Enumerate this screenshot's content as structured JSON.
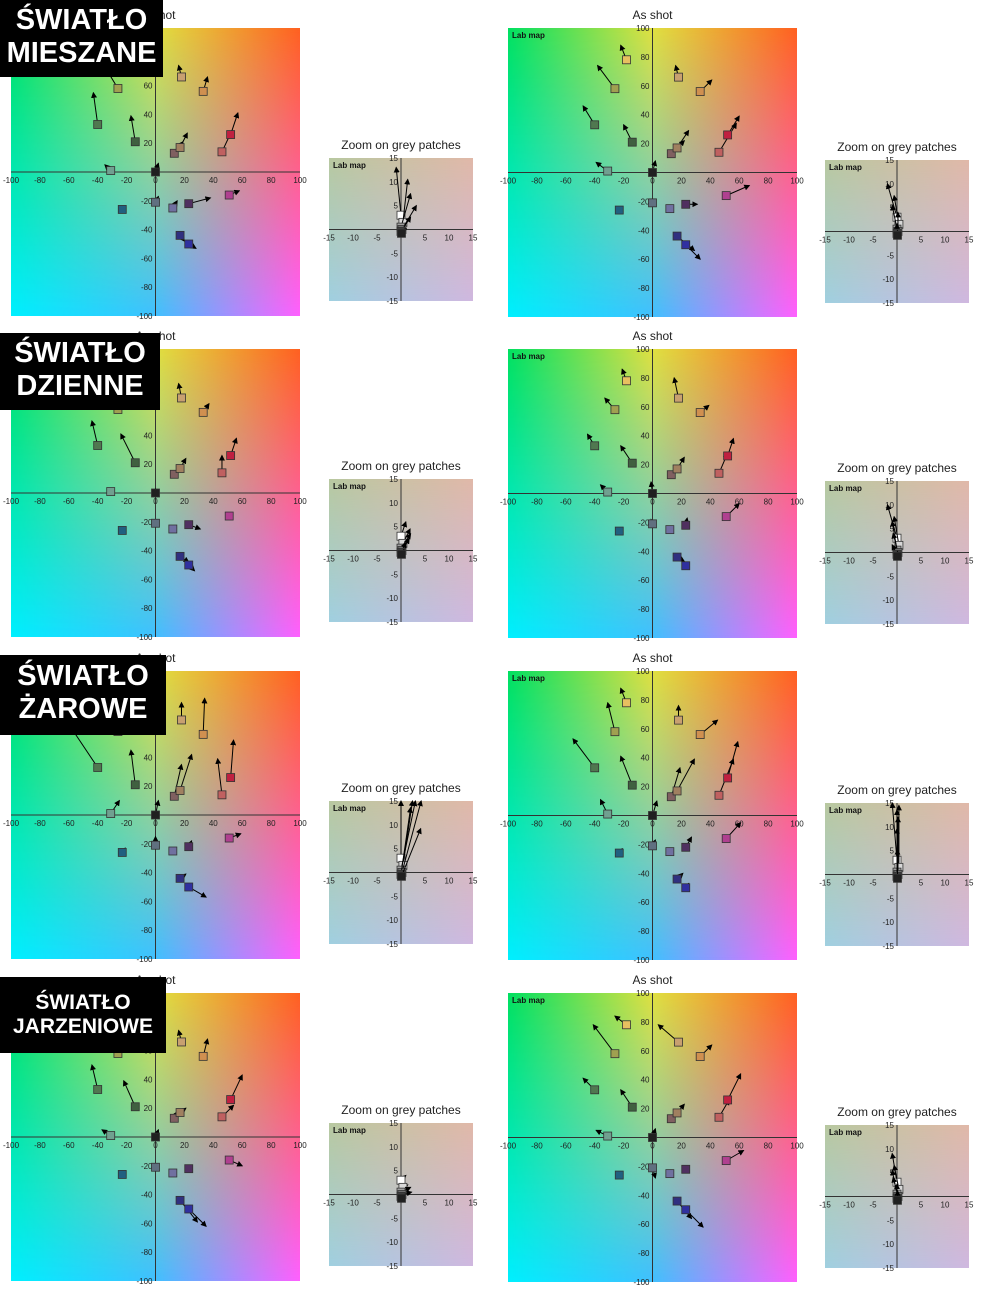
{
  "rows": [
    {
      "label_lines": [
        "ŚWIATŁO",
        "MIESZANE"
      ],
      "left_title": "As shot",
      "right_title": "As shot",
      "zoom_title_left": "Zoom on grey patches",
      "zoom_title_right": "Zoom on grey patches"
    },
    {
      "label_lines": [
        "ŚWIATŁO",
        "DZIENNE"
      ],
      "left_title": "As shot",
      "right_title": "As shot",
      "zoom_title_left": "Zoom on grey patches",
      "zoom_title_right": "Zoom on grey patches"
    },
    {
      "label_lines": [
        "ŚWIATŁO",
        "ŻAROWE"
      ],
      "left_title": "As shot",
      "right_title": "As shot",
      "zoom_title_left": "Zoom on grey patches",
      "zoom_title_right": "Zoom on grey patches"
    },
    {
      "label_lines": [
        "ŚWIATŁO",
        "JARZENIOWE"
      ],
      "left_title": "As shot",
      "right_title": "As shot",
      "zoom_title_left": "Zoom on grey patches",
      "zoom_title_right": "Zoom on grey patches"
    }
  ],
  "lab_map_label": "Lab map",
  "chart_data": {
    "type": "scatter",
    "description_axes": "a* (x) vs b* (y)",
    "main_axis": {
      "xlim": [
        -100,
        100
      ],
      "ylim": [
        -100,
        100
      ],
      "ticks": [
        -100,
        -80,
        -60,
        -40,
        -20,
        0,
        20,
        40,
        60,
        80,
        100
      ]
    },
    "zoom_axis": {
      "xlim": [
        -15,
        15
      ],
      "ylim": [
        -15,
        15
      ],
      "ticks": [
        -15,
        -10,
        -5,
        0,
        5,
        10,
        15
      ]
    },
    "patches": [
      {
        "a": -18,
        "b": 78,
        "color": "#e8c060"
      },
      {
        "a": 18,
        "b": 66,
        "color": "#c8a070"
      },
      {
        "a": 33,
        "b": 56,
        "color": "#d09050"
      },
      {
        "a": -26,
        "b": 58,
        "color": "#a0a050"
      },
      {
        "a": -40,
        "b": 33,
        "color": "#507850"
      },
      {
        "a": -14,
        "b": 21,
        "color": "#406040"
      },
      {
        "a": 13,
        "b": 13,
        "color": "#806060"
      },
      {
        "a": 17,
        "b": 17,
        "color": "#a08060"
      },
      {
        "a": 46,
        "b": 14,
        "color": "#c06060"
      },
      {
        "a": 52,
        "b": 26,
        "color": "#c02040"
      },
      {
        "a": -31,
        "b": 1,
        "color": "#70a090"
      },
      {
        "a": 0,
        "b": 0,
        "color": "#202020"
      },
      {
        "a": -23,
        "b": -26,
        "color": "#206080"
      },
      {
        "a": 0,
        "b": -21,
        "color": "#607080"
      },
      {
        "a": 12,
        "b": -25,
        "color": "#7070a0"
      },
      {
        "a": 23,
        "b": -22,
        "color": "#503060"
      },
      {
        "a": 51,
        "b": -16,
        "color": "#b04090"
      },
      {
        "a": 17,
        "b": -44,
        "color": "#303080"
      },
      {
        "a": 23,
        "b": -50,
        "color": "#3030a0"
      }
    ],
    "grey_patches": [
      {
        "a": 0,
        "b": 3,
        "color": "#ffffff"
      },
      {
        "a": 0.4,
        "b": 1.5,
        "color": "#d8d8d8"
      },
      {
        "a": 0,
        "b": 0.5,
        "color": "#a0a0a0"
      },
      {
        "a": 0.2,
        "b": 0,
        "color": "#707070"
      },
      {
        "a": 0,
        "b": -0.4,
        "color": "#404040"
      },
      {
        "a": 0.1,
        "b": -0.8,
        "color": "#202020"
      }
    ],
    "arrow_shifts": {
      "r0_left": [
        [
          2,
          10
        ],
        [
          -2,
          8
        ],
        [
          3,
          10
        ],
        [
          -12,
          20
        ],
        [
          -3,
          22
        ],
        [
          -3,
          18
        ],
        [
          6,
          8
        ],
        [
          5,
          10
        ],
        [
          7,
          15
        ],
        [
          5,
          15
        ],
        [
          -4,
          4
        ],
        [
          2,
          6
        ],
        [
          0,
          0
        ],
        [
          2,
          4
        ],
        [
          3,
          5
        ],
        [
          15,
          4
        ],
        [
          7,
          3
        ],
        [
          3,
          -4
        ],
        [
          5,
          -3
        ]
      ],
      "r0_right": [
        [
          -4,
          10
        ],
        [
          -2,
          8
        ],
        [
          8,
          8
        ],
        [
          -12,
          16
        ],
        [
          -8,
          13
        ],
        [
          -6,
          12
        ],
        [
          9,
          9
        ],
        [
          8,
          12
        ],
        [
          12,
          20
        ],
        [
          8,
          13
        ],
        [
          -8,
          6
        ],
        [
          2,
          8
        ],
        [
          0,
          0
        ],
        [
          0,
          0
        ],
        [
          0,
          0
        ],
        [
          8,
          0
        ],
        [
          16,
          7
        ],
        [
          12,
          -10
        ],
        [
          10,
          -10
        ]
      ],
      "r1_left": [
        [
          0,
          7
        ],
        [
          -2,
          10
        ],
        [
          4,
          6
        ],
        [
          -12,
          22
        ],
        [
          -4,
          17
        ],
        [
          -10,
          20
        ],
        [
          5,
          5
        ],
        [
          4,
          7
        ],
        [
          0,
          12
        ],
        [
          4,
          12
        ],
        [
          0,
          0
        ],
        [
          0,
          3
        ],
        [
          0,
          0
        ],
        [
          0,
          0
        ],
        [
          0,
          0
        ],
        [
          8,
          -3
        ],
        [
          0,
          0
        ],
        [
          6,
          -4
        ],
        [
          4,
          -4
        ]
      ],
      "r1_right": [
        [
          -3,
          8
        ],
        [
          -3,
          14
        ],
        [
          6,
          5
        ],
        [
          -7,
          8
        ],
        [
          -5,
          8
        ],
        [
          -8,
          12
        ],
        [
          5,
          5
        ],
        [
          5,
          8
        ],
        [
          6,
          14
        ],
        [
          4,
          12
        ],
        [
          -5,
          5
        ],
        [
          -1,
          8
        ],
        [
          0,
          0
        ],
        [
          -1,
          3
        ],
        [
          0,
          0
        ],
        [
          1,
          5
        ],
        [
          9,
          9
        ],
        [
          5,
          -3
        ],
        [
          0,
          0
        ]
      ],
      "r2_left": [
        [
          0,
          10
        ],
        [
          0,
          12
        ],
        [
          1,
          25
        ],
        [
          -10,
          20
        ],
        [
          -20,
          30
        ],
        [
          -3,
          24
        ],
        [
          5,
          22
        ],
        [
          8,
          25
        ],
        [
          -3,
          25
        ],
        [
          2,
          26
        ],
        [
          6,
          9
        ],
        [
          2,
          10
        ],
        [
          2,
          3
        ],
        [
          0,
          6
        ],
        [
          0,
          0
        ],
        [
          2,
          4
        ],
        [
          8,
          3
        ],
        [
          4,
          3
        ],
        [
          12,
          -7
        ]
      ],
      "r2_right": [
        [
          -4,
          10
        ],
        [
          0,
          10
        ],
        [
          12,
          10
        ],
        [
          -5,
          20
        ],
        [
          -15,
          20
        ],
        [
          -8,
          20
        ],
        [
          6,
          20
        ],
        [
          12,
          22
        ],
        [
          10,
          25
        ],
        [
          7,
          25
        ],
        [
          -5,
          10
        ],
        [
          3,
          10
        ],
        [
          2,
          3
        ],
        [
          2,
          4
        ],
        [
          0,
          0
        ],
        [
          4,
          7
        ],
        [
          10,
          11
        ],
        [
          4,
          4
        ],
        [
          2,
          3
        ]
      ],
      "r3_left": [
        [
          0,
          5
        ],
        [
          -2,
          8
        ],
        [
          3,
          12
        ],
        [
          -14,
          22
        ],
        [
          -4,
          17
        ],
        [
          -8,
          18
        ],
        [
          3,
          5
        ],
        [
          4,
          3
        ],
        [
          8,
          8
        ],
        [
          8,
          17
        ],
        [
          -6,
          4
        ],
        [
          2,
          5
        ],
        [
          1,
          1
        ],
        [
          0,
          0
        ],
        [
          0,
          0
        ],
        [
          0,
          0
        ],
        [
          9,
          -4
        ],
        [
          12,
          -15
        ],
        [
          12,
          -12
        ]
      ],
      "r3_right": [
        [
          -8,
          6
        ],
        [
          -14,
          12
        ],
        [
          8,
          8
        ],
        [
          -15,
          20
        ],
        [
          -8,
          8
        ],
        [
          -8,
          12
        ],
        [
          5,
          5
        ],
        [
          5,
          6
        ],
        [
          7,
          12
        ],
        [
          9,
          18
        ],
        [
          -8,
          4
        ],
        [
          2,
          6
        ],
        [
          2,
          2
        ],
        [
          2,
          -7
        ],
        [
          0,
          0
        ],
        [
          0,
          0
        ],
        [
          12,
          7
        ],
        [
          10,
          -12
        ],
        [
          12,
          -12
        ]
      ]
    },
    "zoom_shifts": {
      "r0_left": [
        [
          -1,
          10
        ],
        [
          1,
          9
        ],
        [
          2,
          7
        ],
        [
          3,
          5
        ],
        [
          2,
          3
        ],
        [
          1,
          1
        ]
      ],
      "r0_right": [
        [
          -2,
          7
        ],
        [
          -1,
          6
        ],
        [
          -1,
          5
        ],
        [
          0,
          4
        ],
        [
          0,
          2
        ],
        [
          0,
          1
        ]
      ],
      "r1_left": [
        [
          1,
          3
        ],
        [
          1.5,
          3
        ],
        [
          2,
          3
        ],
        [
          1.5,
          2.5
        ],
        [
          1,
          2
        ],
        [
          0.5,
          1
        ]
      ],
      "r1_right": [
        [
          -2,
          7
        ],
        [
          -1,
          6
        ],
        [
          -1,
          6
        ],
        [
          -1,
          4
        ],
        [
          -1,
          2
        ],
        [
          0,
          1
        ]
      ],
      "r2_left": [
        [
          0,
          16
        ],
        [
          2,
          16
        ],
        [
          3,
          16
        ],
        [
          4,
          16
        ],
        [
          2,
          14
        ],
        [
          4,
          10
        ]
      ],
      "r2_right": [
        [
          -1,
          13
        ],
        [
          0,
          13
        ],
        [
          0,
          13
        ],
        [
          0,
          12
        ],
        [
          0,
          10
        ],
        [
          0,
          6
        ]
      ],
      "r3_left": [
        [
          1,
          1
        ],
        [
          1,
          0.5
        ],
        [
          2,
          1
        ],
        [
          2,
          0.5
        ],
        [
          1,
          0.5
        ],
        [
          0.5,
          0.2
        ]
      ],
      "r3_right": [
        [
          -1,
          6
        ],
        [
          -1,
          5
        ],
        [
          -1,
          5
        ],
        [
          -1,
          4
        ],
        [
          0,
          3
        ],
        [
          0,
          2
        ]
      ]
    }
  }
}
